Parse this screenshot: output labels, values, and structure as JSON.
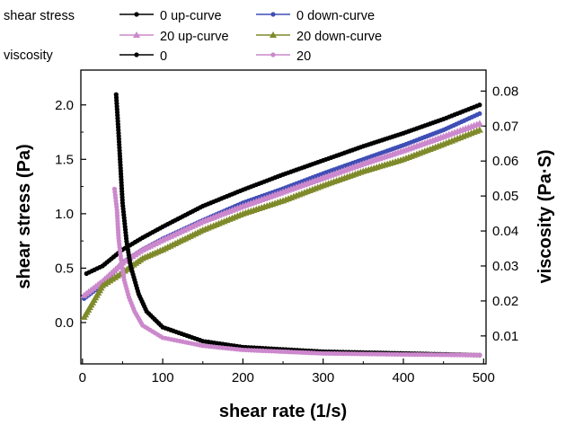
{
  "chart_data": {
    "type": "line",
    "xlabel": "shear rate (1/s)",
    "ylabel_left": "shear stress (Pa)",
    "ylabel_right": "viscosity (Pa·S)",
    "xlim": [
      -2,
      503
    ],
    "ylim_left": [
      -0.38,
      2.32
    ],
    "ylim_right": [
      0.002,
      0.086
    ],
    "x_ticks": [
      "0",
      "100",
      "200",
      "300",
      "400",
      "500"
    ],
    "y_ticks_left": [
      "0.0",
      "0.5",
      "1.0",
      "1.5",
      "2.0"
    ],
    "y_ticks_right": [
      "0.01",
      "0.02",
      "0.03",
      "0.04",
      "0.05",
      "0.06",
      "0.07",
      "0.08"
    ],
    "grid": false,
    "legend": {
      "placement": "top",
      "group_shear_stress": "shear stress",
      "group_viscosity": "viscosity"
    },
    "series": [
      {
        "name": "0 up-curve",
        "axis": "left",
        "color": "#000000",
        "marker": "circle",
        "x": [
          5,
          25,
          50,
          75,
          100,
          150,
          200,
          250,
          300,
          350,
          400,
          450,
          495
        ],
        "y": [
          0.45,
          0.52,
          0.67,
          0.78,
          0.88,
          1.07,
          1.22,
          1.36,
          1.49,
          1.62,
          1.74,
          1.87,
          2.0
        ]
      },
      {
        "name": "0 down-curve",
        "axis": "left",
        "color": "#3f4eb5",
        "marker": "circle",
        "x": [
          2,
          25,
          50,
          75,
          100,
          150,
          200,
          250,
          300,
          350,
          400,
          450,
          495
        ],
        "y": [
          0.22,
          0.35,
          0.55,
          0.67,
          0.77,
          0.94,
          1.1,
          1.23,
          1.37,
          1.5,
          1.63,
          1.77,
          1.92
        ]
      },
      {
        "name": "20 up-curve",
        "axis": "left",
        "color": "#cc88cc",
        "marker": "triangle",
        "x": [
          2,
          25,
          50,
          75,
          100,
          150,
          200,
          250,
          300,
          350,
          400,
          450,
          495
        ],
        "y": [
          0.25,
          0.38,
          0.55,
          0.67,
          0.76,
          0.93,
          1.07,
          1.2,
          1.33,
          1.46,
          1.58,
          1.71,
          1.83
        ]
      },
      {
        "name": "20 down-curve",
        "axis": "left",
        "color": "#7f8a2a",
        "marker": "triangle",
        "x": [
          2,
          25,
          50,
          75,
          100,
          150,
          200,
          250,
          300,
          350,
          400,
          450,
          495
        ],
        "y": [
          0.05,
          0.34,
          0.46,
          0.59,
          0.67,
          0.85,
          1.0,
          1.12,
          1.26,
          1.39,
          1.5,
          1.64,
          1.77
        ]
      },
      {
        "name": "0",
        "axis": "right",
        "color": "#000000",
        "marker": "circle",
        "x": [
          42,
          45,
          50,
          55,
          60,
          70,
          80,
          100,
          150,
          200,
          300,
          400,
          495
        ],
        "y": [
          0.079,
          0.068,
          0.048,
          0.037,
          0.03,
          0.022,
          0.017,
          0.0125,
          0.0085,
          0.0068,
          0.0055,
          0.005,
          0.0045
        ]
      },
      {
        "name": "20",
        "axis": "right",
        "color": "#cc88cc",
        "marker": "circle",
        "x": [
          40,
          43,
          45,
          48,
          52,
          58,
          65,
          75,
          100,
          150,
          200,
          300,
          400,
          495
        ],
        "y": [
          0.052,
          0.046,
          0.038,
          0.032,
          0.026,
          0.021,
          0.017,
          0.013,
          0.0095,
          0.0072,
          0.006,
          0.005,
          0.0047,
          0.0045
        ]
      }
    ]
  }
}
